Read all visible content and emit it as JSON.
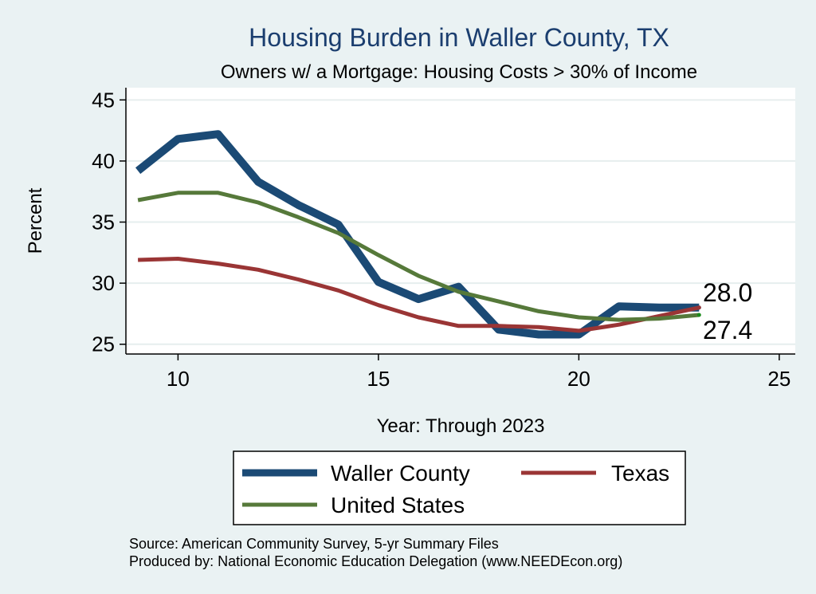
{
  "chart_data": {
    "type": "line",
    "title": "Housing Burden in Waller County, TX",
    "subtitle": "Owners w/ a Mortgage: Housing Costs > 30% of Income",
    "xlabel": "Year: Through 2023",
    "ylabel": "Percent",
    "xlim": [
      8.7,
      25.4
    ],
    "ylim": [
      24.2,
      46
    ],
    "xticks": [
      10,
      15,
      20,
      25
    ],
    "yticks": [
      25,
      30,
      35,
      40,
      45
    ],
    "grid": true,
    "legend_position": "bottom",
    "x": [
      9,
      10,
      11,
      12,
      13,
      14,
      15,
      16,
      17,
      18,
      19,
      20,
      21,
      22,
      23
    ],
    "series": [
      {
        "name": "Waller County",
        "color": "#1b4a75",
        "values": [
          39.2,
          41.8,
          42.2,
          38.3,
          36.4,
          34.8,
          30.1,
          28.7,
          29.7,
          26.2,
          25.8,
          25.8,
          28.1,
          28.0,
          28.0
        ]
      },
      {
        "name": "Texas",
        "color": "#9a3535",
        "values": [
          31.9,
          32.0,
          31.6,
          31.1,
          30.3,
          29.4,
          28.2,
          27.2,
          26.5,
          26.5,
          26.4,
          26.1,
          26.6,
          27.3,
          28.0
        ]
      },
      {
        "name": "United States",
        "color": "#56793a",
        "values": [
          36.8,
          37.4,
          37.4,
          36.6,
          35.4,
          34.1,
          32.3,
          30.6,
          29.3,
          28.5,
          27.7,
          27.2,
          27.0,
          27.1,
          27.4
        ]
      }
    ],
    "end_labels": [
      "28.0",
      "27.4"
    ],
    "source": "Source: American Community Survey, 5-yr Summary Files",
    "produced_by": "Produced by: National Economic Education Delegation (www.NEEDEcon.org)"
  }
}
